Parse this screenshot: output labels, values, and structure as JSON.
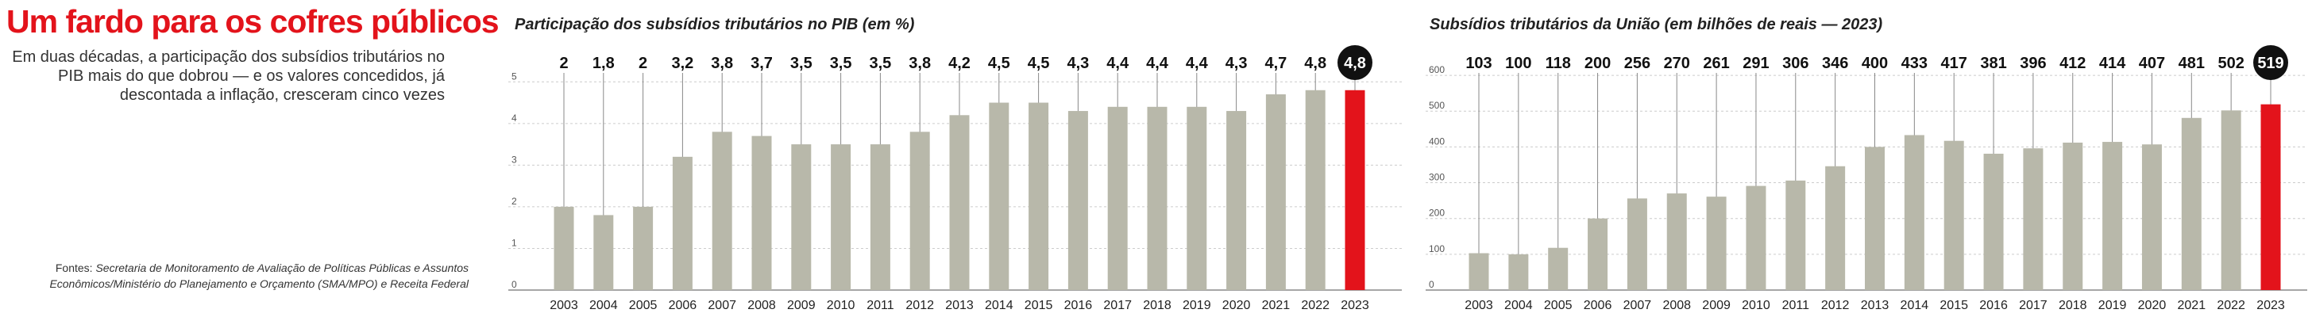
{
  "headline": "Um fardo para os cofres públicos",
  "intro": "Em duas décadas, a participação dos subsídios tributários no PIB mais do que dobrou — e os valores concedidos, já descontada a inflação, cresceram cinco vezes",
  "sources": {
    "label": "Fontes: ",
    "text": "Secretaria de Monitoramento de Avaliação de Políticas Públicas e Assuntos Econômicos/Ministério do Planejamento e Orçamento (SMA/MPO) e Receita Federal"
  },
  "colors": {
    "bar": "#b8b8aa",
    "highlight": "#e3131b",
    "headline": "#e3131b",
    "axis": "#888888",
    "grid": "#cccccc"
  },
  "chart_data": [
    {
      "type": "bar",
      "title": "Participação dos subsídios tributários no PIB (em %)",
      "xlabel": "",
      "ylabel": "",
      "categories": [
        "2003",
        "2004",
        "2005",
        "2006",
        "2007",
        "2008",
        "2009",
        "2010",
        "2011",
        "2012",
        "2013",
        "2014",
        "2015",
        "2016",
        "2017",
        "2018",
        "2019",
        "2020",
        "2021",
        "2022",
        "2023"
      ],
      "values": [
        2,
        1.8,
        2,
        3.2,
        3.8,
        3.7,
        3.5,
        3.5,
        3.5,
        3.8,
        4.2,
        4.5,
        4.5,
        4.3,
        4.4,
        4.4,
        4.4,
        4.3,
        4.7,
        4.8,
        4.8
      ],
      "value_labels": [
        "2",
        "1,8",
        "2",
        "3,2",
        "3,8",
        "3,7",
        "3,5",
        "3,5",
        "3,5",
        "3,8",
        "4,2",
        "4,5",
        "4,5",
        "4,3",
        "4,4",
        "4,4",
        "4,4",
        "4,3",
        "4,7",
        "4,8",
        "4,8"
      ],
      "highlight_index": 20,
      "ylim": [
        0,
        5.5
      ],
      "yticks": [
        0,
        1,
        2,
        3,
        4,
        5
      ],
      "ytick_labels": [
        "0",
        "1",
        "2",
        "3",
        "4",
        "5"
      ],
      "grid": true,
      "legend": "none"
    },
    {
      "type": "bar",
      "title": "Subsídios tributários da União (em bilhões de reais — 2023)",
      "xlabel": "",
      "ylabel": "",
      "categories": [
        "2003",
        "2004",
        "2005",
        "2006",
        "2007",
        "2008",
        "2009",
        "2010",
        "2011",
        "2012",
        "2013",
        "2014",
        "2015",
        "2016",
        "2017",
        "2018",
        "2019",
        "2020",
        "2021",
        "2022",
        "2023"
      ],
      "values": [
        103,
        100,
        118,
        200,
        256,
        270,
        261,
        291,
        306,
        346,
        400,
        433,
        417,
        381,
        396,
        412,
        414,
        407,
        481,
        502,
        519
      ],
      "value_labels": [
        "103",
        "100",
        "118",
        "200",
        "256",
        "270",
        "261",
        "291",
        "306",
        "346",
        "400",
        "433",
        "417",
        "381",
        "396",
        "412",
        "414",
        "407",
        "481",
        "502",
        "519"
      ],
      "highlight_index": 20,
      "ylim": [
        0,
        640
      ],
      "yticks": [
        0,
        100,
        200,
        300,
        400,
        500,
        600
      ],
      "ytick_labels": [
        "0",
        "100",
        "200",
        "300",
        "400",
        "500",
        "600"
      ],
      "grid": true,
      "legend": "none"
    }
  ]
}
